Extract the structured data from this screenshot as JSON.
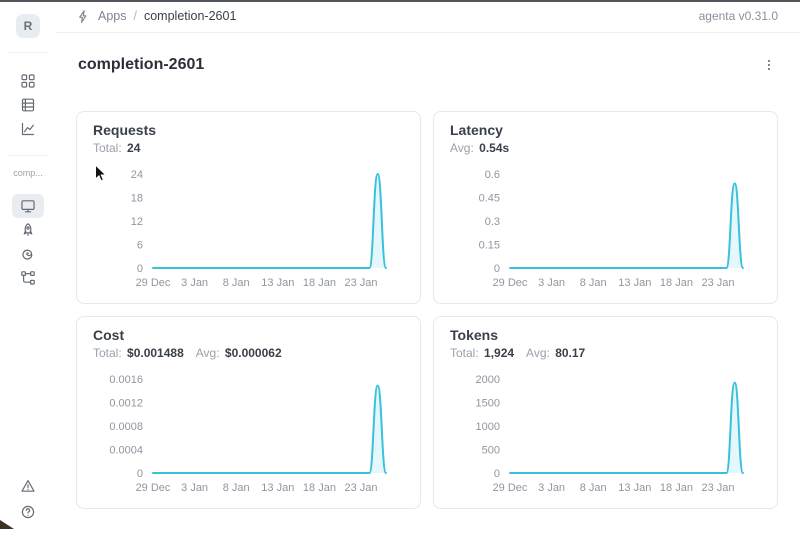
{
  "header": {
    "breadcrumb": {
      "icon": "lightning-bolt-icon",
      "section": "Apps",
      "separator": "/",
      "current": "completion-2601"
    },
    "version": "agenta v0.31.0"
  },
  "page": {
    "title": "completion-2601",
    "menu_icon": "kebab-menu-icon"
  },
  "sidebar": {
    "avatar_letter": "R",
    "app_label": "comp...",
    "nav_top": [
      {
        "name": "sidebar-item-apps",
        "icon": "apps-grid-icon"
      },
      {
        "name": "sidebar-item-registry",
        "icon": "table-icon"
      },
      {
        "name": "sidebar-item-observability",
        "icon": "line-chart-icon"
      }
    ],
    "nav_app": [
      {
        "name": "sidebar-item-overview",
        "icon": "monitor-icon",
        "selected": true
      },
      {
        "name": "sidebar-item-playground",
        "icon": "rocket-icon",
        "selected": false
      },
      {
        "name": "sidebar-item-traces",
        "icon": "spiral-icon",
        "selected": false
      },
      {
        "name": "sidebar-item-evaluations",
        "icon": "tree-icon",
        "selected": false
      }
    ],
    "nav_bottom": [
      {
        "name": "sidebar-item-alerts",
        "icon": "warning-triangle-icon"
      },
      {
        "name": "sidebar-item-help",
        "icon": "help-circle-icon"
      }
    ]
  },
  "colors": {
    "accent": "#38c1dd",
    "area_fill_opacity": 0.13,
    "tick_text": "#8f969f"
  },
  "chart_data": [
    {
      "key": "requests",
      "type": "line",
      "title": "Requests",
      "stats": [
        {
          "label": "Total:",
          "value": "24"
        }
      ],
      "yticks": [
        "24",
        "18",
        "12",
        "6",
        "0"
      ],
      "y_max": 24,
      "ylim": [
        0,
        24
      ],
      "xticks": [
        "29 Dec",
        "3 Jan",
        "8 Jan",
        "13 Jan",
        "18 Jan",
        "23 Jan"
      ],
      "xtick_positions": [
        0,
        5,
        10,
        15,
        20,
        25
      ],
      "x": [
        "29 Dec",
        "30 Dec",
        "31 Dec",
        "1 Jan",
        "2 Jan",
        "3 Jan",
        "4 Jan",
        "5 Jan",
        "6 Jan",
        "7 Jan",
        "8 Jan",
        "9 Jan",
        "10 Jan",
        "11 Jan",
        "12 Jan",
        "13 Jan",
        "14 Jan",
        "15 Jan",
        "16 Jan",
        "17 Jan",
        "18 Jan",
        "19 Jan",
        "20 Jan",
        "21 Jan",
        "22 Jan",
        "23 Jan",
        "24 Jan",
        "25 Jan",
        "26 Jan"
      ],
      "values": [
        0,
        0,
        0,
        0,
        0,
        0,
        0,
        0,
        0,
        0,
        0,
        0,
        0,
        0,
        0,
        0,
        0,
        0,
        0,
        0,
        0,
        0,
        0,
        0,
        0,
        0,
        0,
        24,
        0
      ]
    },
    {
      "key": "latency",
      "type": "line",
      "title": "Latency",
      "stats": [
        {
          "label": "Avg:",
          "value": "0.54s"
        }
      ],
      "yticks": [
        "0.6",
        "0.45",
        "0.3",
        "0.15",
        "0"
      ],
      "y_max": 0.6,
      "ylim": [
        0,
        0.6
      ],
      "xticks": [
        "29 Dec",
        "3 Jan",
        "8 Jan",
        "13 Jan",
        "18 Jan",
        "23 Jan"
      ],
      "xtick_positions": [
        0,
        5,
        10,
        15,
        20,
        25
      ],
      "x": [
        "29 Dec",
        "30 Dec",
        "31 Dec",
        "1 Jan",
        "2 Jan",
        "3 Jan",
        "4 Jan",
        "5 Jan",
        "6 Jan",
        "7 Jan",
        "8 Jan",
        "9 Jan",
        "10 Jan",
        "11 Jan",
        "12 Jan",
        "13 Jan",
        "14 Jan",
        "15 Jan",
        "16 Jan",
        "17 Jan",
        "18 Jan",
        "19 Jan",
        "20 Jan",
        "21 Jan",
        "22 Jan",
        "23 Jan",
        "24 Jan",
        "25 Jan",
        "26 Jan"
      ],
      "values": [
        0,
        0,
        0,
        0,
        0,
        0,
        0,
        0,
        0,
        0,
        0,
        0,
        0,
        0,
        0,
        0,
        0,
        0,
        0,
        0,
        0,
        0,
        0,
        0,
        0,
        0,
        0,
        0.54,
        0
      ]
    },
    {
      "key": "cost",
      "type": "line",
      "title": "Cost",
      "stats": [
        {
          "label": "Total:",
          "value": "$0.001488"
        },
        {
          "label": "Avg:",
          "value": "$0.000062"
        }
      ],
      "yticks": [
        "0.0016",
        "0.0012",
        "0.0008",
        "0.0004",
        "0"
      ],
      "y_max": 0.0016,
      "ylim": [
        0,
        0.0016
      ],
      "xticks": [
        "29 Dec",
        "3 Jan",
        "8 Jan",
        "13 Jan",
        "18 Jan",
        "23 Jan"
      ],
      "xtick_positions": [
        0,
        5,
        10,
        15,
        20,
        25
      ],
      "x": [
        "29 Dec",
        "30 Dec",
        "31 Dec",
        "1 Jan",
        "2 Jan",
        "3 Jan",
        "4 Jan",
        "5 Jan",
        "6 Jan",
        "7 Jan",
        "8 Jan",
        "9 Jan",
        "10 Jan",
        "11 Jan",
        "12 Jan",
        "13 Jan",
        "14 Jan",
        "15 Jan",
        "16 Jan",
        "17 Jan",
        "18 Jan",
        "19 Jan",
        "20 Jan",
        "21 Jan",
        "22 Jan",
        "23 Jan",
        "24 Jan",
        "25 Jan",
        "26 Jan"
      ],
      "values": [
        0,
        0,
        0,
        0,
        0,
        0,
        0,
        0,
        0,
        0,
        0,
        0,
        0,
        0,
        0,
        0,
        0,
        0,
        0,
        0,
        0,
        0,
        0,
        0,
        0,
        0,
        0,
        0.001488,
        0
      ]
    },
    {
      "key": "tokens",
      "type": "line",
      "title": "Tokens",
      "stats": [
        {
          "label": "Total:",
          "value": "1,924"
        },
        {
          "label": "Avg:",
          "value": "80.17"
        }
      ],
      "yticks": [
        "2000",
        "1500",
        "1000",
        "500",
        "0"
      ],
      "y_max": 2000,
      "ylim": [
        0,
        2000
      ],
      "xticks": [
        "29 Dec",
        "3 Jan",
        "8 Jan",
        "13 Jan",
        "18 Jan",
        "23 Jan"
      ],
      "xtick_positions": [
        0,
        5,
        10,
        15,
        20,
        25
      ],
      "x": [
        "29 Dec",
        "30 Dec",
        "31 Dec",
        "1 Jan",
        "2 Jan",
        "3 Jan",
        "4 Jan",
        "5 Jan",
        "6 Jan",
        "7 Jan",
        "8 Jan",
        "9 Jan",
        "10 Jan",
        "11 Jan",
        "12 Jan",
        "13 Jan",
        "14 Jan",
        "15 Jan",
        "16 Jan",
        "17 Jan",
        "18 Jan",
        "19 Jan",
        "20 Jan",
        "21 Jan",
        "22 Jan",
        "23 Jan",
        "24 Jan",
        "25 Jan",
        "26 Jan"
      ],
      "values": [
        0,
        0,
        0,
        0,
        0,
        0,
        0,
        0,
        0,
        0,
        0,
        0,
        0,
        0,
        0,
        0,
        0,
        0,
        0,
        0,
        0,
        0,
        0,
        0,
        0,
        0,
        0,
        1924,
        0
      ]
    }
  ]
}
